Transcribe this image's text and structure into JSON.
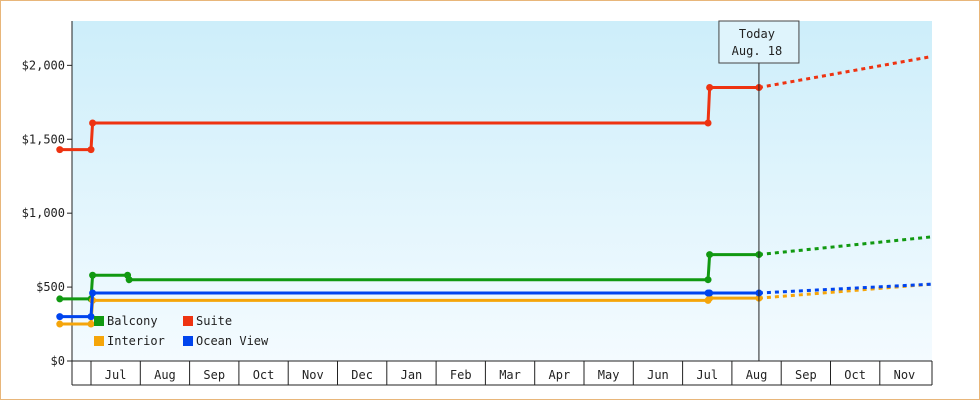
{
  "chart_data": {
    "type": "line",
    "x_axis_months": [
      "Jul",
      "Aug",
      "Sep",
      "Oct",
      "Nov",
      "Dec",
      "Jan",
      "Feb",
      "Mar",
      "Apr",
      "May",
      "Jun",
      "Jul",
      "Aug",
      "Sep",
      "Oct",
      "Nov"
    ],
    "y_ticks": [
      "$0",
      "$500",
      "$1,000",
      "$1,500",
      "$2,000"
    ],
    "ylim": [
      0,
      2300
    ],
    "today_label": [
      "Today",
      "Aug. 18"
    ],
    "today_date": "Aug 18",
    "grid": false,
    "legend_position": "bottom-left",
    "series": [
      {
        "name": "Balcony",
        "color": "#119911",
        "points": [
          [
            "Jun 12",
            420
          ],
          [
            "Jul 1",
            420
          ],
          [
            "Jul 2",
            580
          ],
          [
            "Jul 24",
            580
          ],
          [
            "Jul 25",
            550
          ],
          [
            "Jul 17",
            550
          ],
          [
            "Jul 18",
            720
          ],
          [
            "Aug 18",
            720
          ]
        ],
        "forecast": [
          [
            "Aug 18",
            720
          ],
          [
            "Nov 30",
            840
          ]
        ]
      },
      {
        "name": "Suite",
        "color": "#ee3311",
        "points": [
          [
            "Jun 12",
            1430
          ],
          [
            "Jul 1",
            1430
          ],
          [
            "Jul 2",
            1610
          ],
          [
            "Jul 17",
            1610
          ],
          [
            "Jul 18",
            1850
          ],
          [
            "Aug 18",
            1850
          ]
        ],
        "forecast": [
          [
            "Aug 18",
            1850
          ],
          [
            "Nov 30",
            2060
          ]
        ]
      },
      {
        "name": "Interior",
        "color": "#f5a50a",
        "points": [
          [
            "Jun 12",
            250
          ],
          [
            "Jul 1",
            250
          ],
          [
            "Jul 2",
            410
          ],
          [
            "Jul 17",
            410
          ],
          [
            "Jul 18",
            425
          ],
          [
            "Aug 18",
            425
          ]
        ],
        "forecast": [
          [
            "Aug 18",
            425
          ],
          [
            "Nov 30",
            520
          ]
        ]
      },
      {
        "name": "Ocean View",
        "color": "#0044ee",
        "points": [
          [
            "Jun 12",
            300
          ],
          [
            "Jul 1",
            300
          ],
          [
            "Jul 2",
            460
          ],
          [
            "Jul 17",
            460
          ],
          [
            "Jul 18",
            460
          ],
          [
            "Aug 18",
            460
          ]
        ],
        "forecast": [
          [
            "Aug 18",
            460
          ],
          [
            "Nov 30",
            520
          ]
        ]
      }
    ],
    "legend": [
      "Balcony",
      "Suite",
      "Interior",
      "Ocean View"
    ],
    "colors": {
      "plot_bg_top": "#cdeefa",
      "plot_bg_bottom": "#f4fbff",
      "frame_border": "#e8b67a"
    }
  }
}
